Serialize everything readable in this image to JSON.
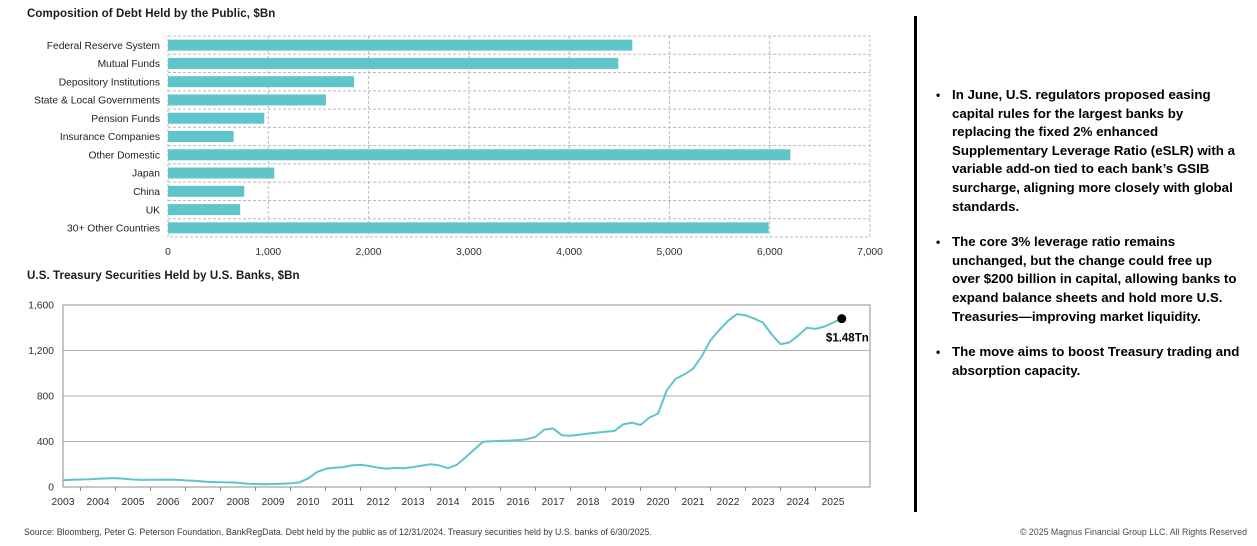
{
  "chart_data": [
    {
      "type": "bar",
      "orientation": "horizontal",
      "title": "Composition of Debt Held by the Public, $Bn",
      "categories": [
        "Federal Reserve System",
        "Mutual Funds",
        "Depository Institutions",
        "State & Local Governments",
        "Pension Funds",
        "Insurance Companies",
        "Other Domestic",
        "Japan",
        "China",
        "UK",
        "30+ Other Countries"
      ],
      "values": [
        4630,
        4490,
        1855,
        1575,
        960,
        655,
        6205,
        1060,
        760,
        720,
        5990
      ],
      "xlim": [
        0,
        7000
      ],
      "xticks": [
        0,
        1000,
        2000,
        3000,
        4000,
        5000,
        6000,
        7000
      ],
      "grid": "dashed",
      "bar_color": "#5FC5CB"
    },
    {
      "type": "line",
      "title": "U.S. Treasury Securities Held by U.S. Banks, $Bn",
      "x_start": 2003,
      "x_step": 0.25,
      "values": [
        60,
        63,
        66,
        68,
        72,
        76,
        78,
        72,
        66,
        62,
        63,
        64,
        65,
        63,
        58,
        55,
        48,
        44,
        42,
        40,
        38,
        30,
        26,
        24,
        26,
        28,
        32,
        40,
        75,
        130,
        160,
        170,
        175,
        190,
        195,
        185,
        170,
        162,
        168,
        165,
        175,
        188,
        200,
        190,
        165,
        195,
        260,
        330,
        398,
        402,
        405,
        408,
        412,
        420,
        440,
        505,
        515,
        455,
        450,
        460,
        470,
        478,
        485,
        492,
        550,
        565,
        545,
        610,
        645,
        850,
        950,
        990,
        1040,
        1150,
        1290,
        1380,
        1460,
        1520,
        1510,
        1480,
        1445,
        1340,
        1255,
        1270,
        1330,
        1400,
        1390,
        1410,
        1445,
        1480
      ],
      "ylim": [
        0,
        1600
      ],
      "yticks": [
        0,
        400,
        800,
        1200,
        1600
      ],
      "xticks": [
        2003,
        2004,
        2005,
        2006,
        2007,
        2008,
        2009,
        2010,
        2011,
        2012,
        2013,
        2014,
        2015,
        2016,
        2017,
        2018,
        2019,
        2020,
        2021,
        2022,
        2023,
        2024,
        2025
      ],
      "grid": "solid-horizontal",
      "line_color": "#5FC5CB",
      "annotation": {
        "label": "$1.48Tn",
        "x": 2025.25,
        "y": 1480
      }
    }
  ],
  "commentary": {
    "bullet_char": "•",
    "bullets": [
      "In June, U.S. regulators proposed easing capital rules for the largest banks by replacing the fixed 2% enhanced Supplementary Leverage Ratio (eSLR) with a variable add-on tied to each bank’s GSIB surcharge, aligning more closely with global standards.",
      "The core 3% leverage ratio remains unchanged, but the change could free up over $200 billion in capital, allowing banks to expand balance sheets and hold more U.S. Treasuries—improving market liquidity.",
      "The move aims to boost Treasury trading and absorption capacity."
    ]
  },
  "footer": {
    "source": "Source: Bloomberg, Peter G. Peterson Foundation, BankRegData. Debt held by the public as of 12/31/2024. Treasury securities held by U.S. banks of 6/30/2025.",
    "copyright": "© 2025 Magnus Financial Group LLC. All Rights Reserved"
  },
  "colors": {
    "accent_teal": "#5FC5CB",
    "grid_dashed": "#bbbbbb",
    "grid_solid": "#b3b3b3",
    "chart_border": "#8c8c8c",
    "divider": "#000000",
    "dot": "#000000"
  }
}
